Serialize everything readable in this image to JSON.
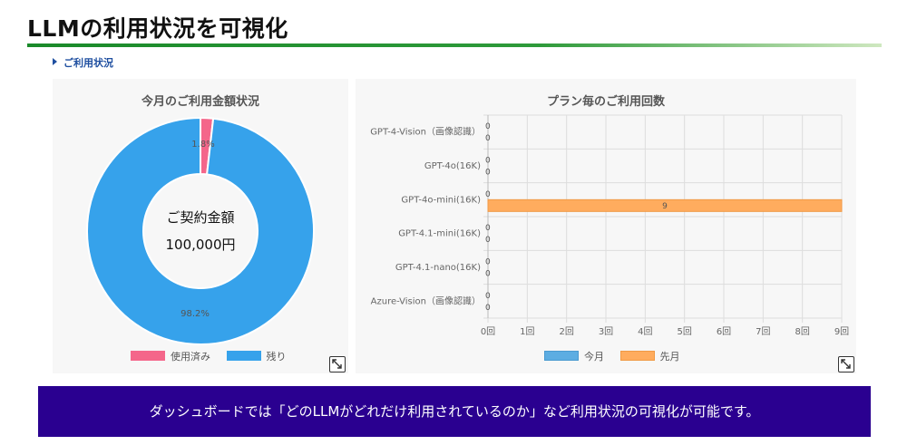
{
  "page": {
    "title": "LLMの利用状況を可視化"
  },
  "section": {
    "link_label": "ご利用状況"
  },
  "left_panel": {
    "title": "今月のご利用金額状況",
    "center_line1": "ご契約金額",
    "center_line2": "100,000円",
    "legend": [
      {
        "label": "使用済み",
        "color": "#f4668a"
      },
      {
        "label": "残り",
        "color": "#36a2eb"
      }
    ],
    "expand_icon": "expand-icon"
  },
  "right_panel": {
    "title": "プラン毎のご利用回数",
    "expand_icon": "expand-icon"
  },
  "banner": {
    "text": "ダッシュボードでは「どのLLMがどれだけ利用されているのか」など利用状況の可視化が可能です。"
  },
  "chart_data": [
    {
      "type": "pie",
      "title": "今月のご利用金額状況",
      "labels": [
        "使用済み",
        "残り"
      ],
      "values": [
        1.8,
        98.2
      ],
      "value_labels": [
        "1.8%",
        "98.2%"
      ],
      "colors": [
        "#f4668a",
        "#36a2eb"
      ],
      "donut": true,
      "legend_position": "bottom"
    },
    {
      "type": "bar",
      "orientation": "horizontal",
      "title": "プラン毎のご利用回数",
      "categories": [
        "GPT-4-Vision（画像認識）",
        "GPT-4o(16K)",
        "GPT-4o-mini(16K)",
        "GPT-4.1-mini(16K)",
        "GPT-4.1-nano(16K)",
        "Azure-Vision（画像認識）"
      ],
      "series": [
        {
          "name": "今月",
          "values": [
            0,
            0,
            0,
            0,
            0,
            0
          ],
          "color": "#5dade2"
        },
        {
          "name": "先月",
          "values": [
            0,
            0,
            9,
            0,
            0,
            0
          ],
          "color": "#ffac5e"
        }
      ],
      "xlim": [
        0,
        9
      ],
      "x_ticks": [
        "0回",
        "1回",
        "2回",
        "3回",
        "4回",
        "5回",
        "6回",
        "7回",
        "8回",
        "9回"
      ],
      "grid": true,
      "legend_position": "bottom"
    }
  ]
}
